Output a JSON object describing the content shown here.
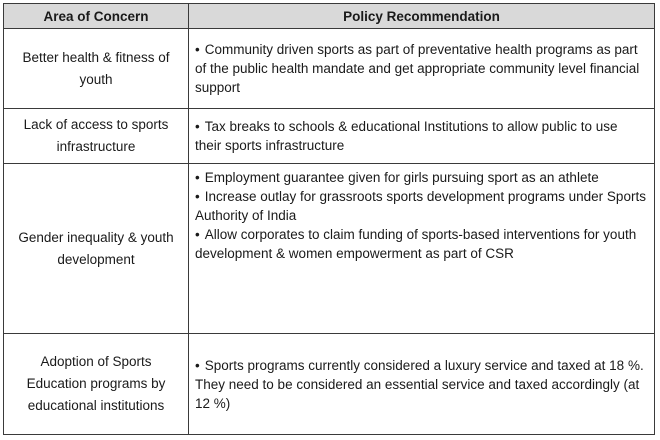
{
  "table": {
    "headers": {
      "concern": "Area of Concern",
      "recommendation": "Policy Recommendation"
    },
    "rows": [
      {
        "concern": "Better health & fitness of youth",
        "recommendations": [
          "Community driven sports as part of preventative health programs as part of the public health mandate and get appropriate community level financial support"
        ]
      },
      {
        "concern": "Lack of access to sports infrastructure",
        "recommendations": [
          "Tax breaks to schools & educational Institutions to allow public to use their sports infrastructure"
        ]
      },
      {
        "concern": "Gender inequality & youth development",
        "recommendations": [
          "Employment guarantee given for girls pursuing sport as an athlete",
          "Increase outlay for grassroots sports development programs under Sports Authority of India",
          "Allow corporates to claim funding of sports-based interventions for youth development & women empowerment as part of CSR"
        ]
      },
      {
        "concern": "Adoption of Sports Education programs by educational institutions",
        "recommendations": [
          "Sports programs currently considered a luxury service and taxed at 18 %. They need to be considered an essential service and taxed accordingly (at 12 %)"
        ]
      }
    ]
  }
}
